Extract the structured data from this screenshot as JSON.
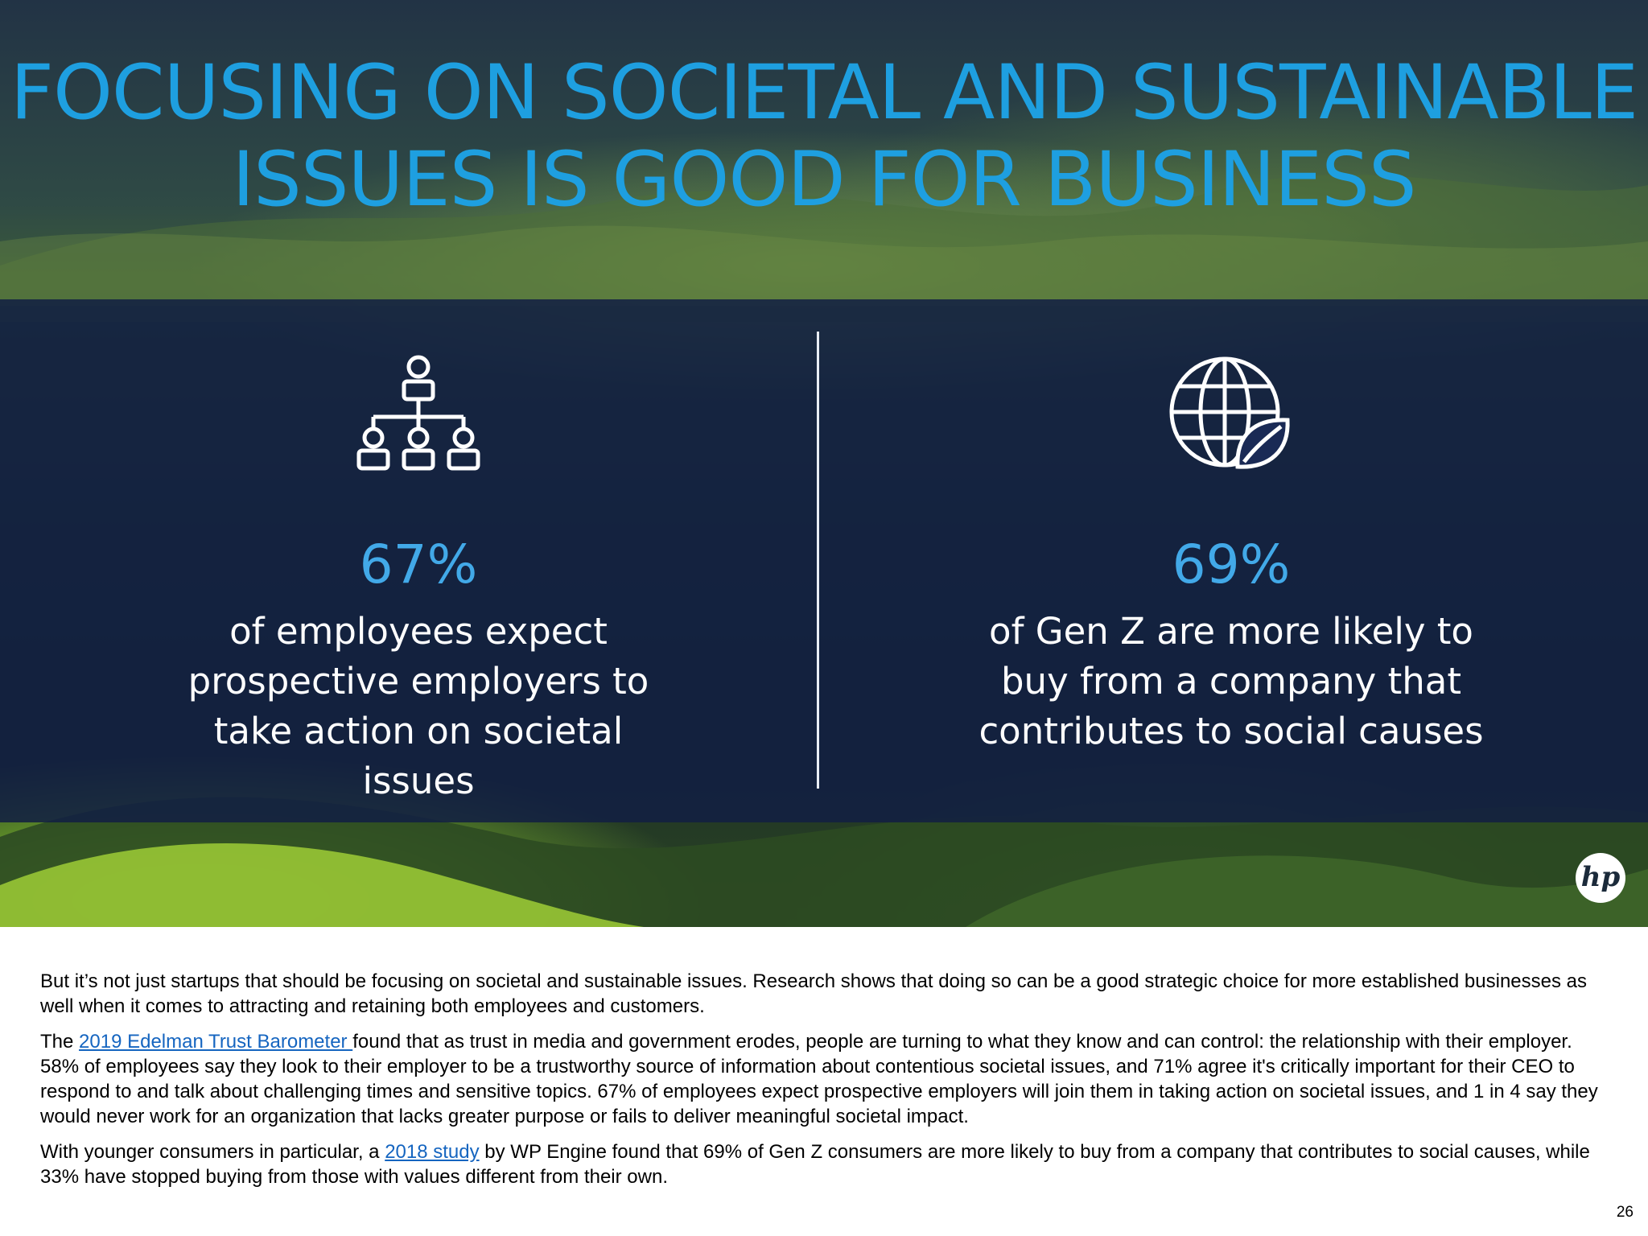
{
  "slide": {
    "title_line1": "FOCUSING ON SOCIETAL AND SUSTAINABLE",
    "title_line2": "ISSUES IS GOOD FOR BUSINESS",
    "stats": [
      {
        "icon": "org-chart-icon",
        "value": "67%",
        "description": "of employees expect prospective employers to take action on societal issues"
      },
      {
        "icon": "globe-leaf-icon",
        "value": "69%",
        "description": "of Gen Z are more likely to buy from a company that contributes to social causes"
      }
    ],
    "logo_text": "hp",
    "colors": {
      "title": "#1e9fe0",
      "stat_value": "#42a9e8",
      "band": "#121e42"
    }
  },
  "article": {
    "p1": "But it’s not just startups that should be focusing on societal and sustainable issues. Research shows that doing so can be a good strategic choice for more established businesses as well when it comes to attracting and retaining both employees and customers.",
    "p2_before": "The ",
    "p2_link": "2019 Edelman Trust Barometer ",
    "p2_after": "found that as trust in media and government erodes, people are turning to what they know and can control: the relationship with their employer. 58% of employees say they look to their employer to be a trustworthy source of information about contentious societal issues, and 71% agree it's critically important for their CEO to respond to and talk about challenging times and sensitive topics. 67% of employees expect prospective employers will join them in taking action on societal issues, and 1 in 4 say they would never work for an organization that lacks greater purpose or fails to deliver meaningful societal impact.",
    "p3_before": "With younger consumers in particular, a ",
    "p3_link": "2018 study",
    "p3_after": " by WP Engine found that 69% of Gen Z consumers are more likely to buy from a company that contributes to social causes, while 33% have stopped buying from those with values different from their own.",
    "link_color": "#1565c0"
  },
  "page_number": "26"
}
